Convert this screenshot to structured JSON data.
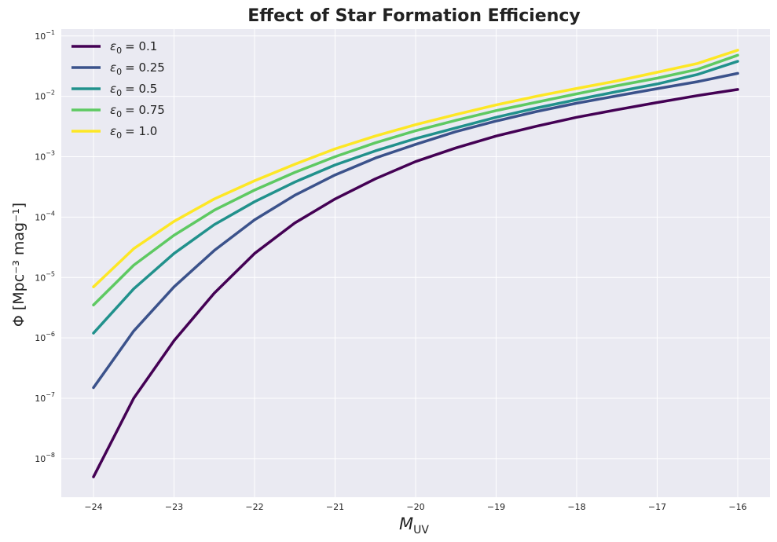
{
  "chart_data": {
    "type": "line",
    "title": "Effect of Star Formation Efficiency",
    "xlabel": "M_UV",
    "ylabel": "Φ [Mpc⁻³ mag⁻¹]",
    "x_scale": "linear",
    "y_scale": "log",
    "xlim": [
      -24.4,
      -15.6
    ],
    "ylim": [
      2.3e-09,
      0.13
    ],
    "x_ticks": [
      -24,
      -23,
      -22,
      -21,
      -20,
      -19,
      -18,
      -17,
      -16
    ],
    "y_ticks": [
      {
        "value": 1e-08,
        "base": "10",
        "exp": "−8"
      },
      {
        "value": 1e-07,
        "base": "10",
        "exp": "−7"
      },
      {
        "value": 1e-06,
        "base": "10",
        "exp": "−6"
      },
      {
        "value": 1e-05,
        "base": "10",
        "exp": "−5"
      },
      {
        "value": 0.0001,
        "base": "10",
        "exp": "−4"
      },
      {
        "value": 0.001,
        "base": "10",
        "exp": "−3"
      },
      {
        "value": 0.01,
        "base": "10",
        "exp": "−2"
      },
      {
        "value": 0.1,
        "base": "10",
        "exp": "−1"
      }
    ],
    "grid": true,
    "legend_position": "top-left",
    "x": [
      -24.0,
      -23.5,
      -23.0,
      -22.5,
      -22.0,
      -21.5,
      -21.0,
      -20.5,
      -20.0,
      -19.5,
      -19.0,
      -18.5,
      -18.0,
      -17.5,
      -17.0,
      -16.5,
      -16.0
    ],
    "series": [
      {
        "name": "ε₀ = 0.1",
        "sym": "ε",
        "sub": "0",
        "val": "= 0.1",
        "color": "#440154",
        "values": [
          5e-09,
          1e-07,
          9e-07,
          5.5e-06,
          2.5e-05,
          8e-05,
          0.0002,
          0.00043,
          0.00083,
          0.0014,
          0.0022,
          0.0032,
          0.0045,
          0.006,
          0.0079,
          0.0103,
          0.013
        ]
      },
      {
        "name": "ε₀ = 0.25",
        "sym": "ε",
        "sub": "0",
        "val": "= 0.25",
        "color": "#3b528b",
        "values": [
          1.5e-07,
          1.3e-06,
          7e-06,
          2.8e-05,
          9e-05,
          0.00023,
          0.0005,
          0.00095,
          0.0016,
          0.0026,
          0.0039,
          0.0056,
          0.0077,
          0.0102,
          0.0134,
          0.0175,
          0.024
        ]
      },
      {
        "name": "ε₀ = 0.5",
        "sym": "ε",
        "sub": "0",
        "val": "= 0.5",
        "color": "#21918c",
        "values": [
          1.2e-06,
          6.5e-06,
          2.5e-05,
          7.5e-05,
          0.00018,
          0.00038,
          0.00073,
          0.00125,
          0.002,
          0.003,
          0.0045,
          0.0064,
          0.0088,
          0.012,
          0.016,
          0.023,
          0.038
        ]
      },
      {
        "name": "ε₀ = 0.75",
        "sym": "ε",
        "sub": "0",
        "val": "= 0.75",
        "color": "#5ec962",
        "values": [
          3.5e-06,
          1.6e-05,
          5e-05,
          0.00013,
          0.00028,
          0.00055,
          0.001,
          0.0017,
          0.0027,
          0.004,
          0.0058,
          0.008,
          0.011,
          0.015,
          0.02,
          0.028,
          0.048
        ]
      },
      {
        "name": "ε₀ = 1.0",
        "sym": "ε",
        "sub": "0",
        "val": "= 1.0",
        "color": "#fde725",
        "values": [
          7e-06,
          3e-05,
          8.5e-05,
          0.0002,
          0.0004,
          0.00075,
          0.00135,
          0.0022,
          0.0034,
          0.005,
          0.0072,
          0.01,
          0.0135,
          0.018,
          0.025,
          0.035,
          0.058
        ]
      }
    ],
    "colors": {
      "plot_bg": "#eaeaf2",
      "grid": "#ffffff",
      "text": "#222222"
    }
  }
}
